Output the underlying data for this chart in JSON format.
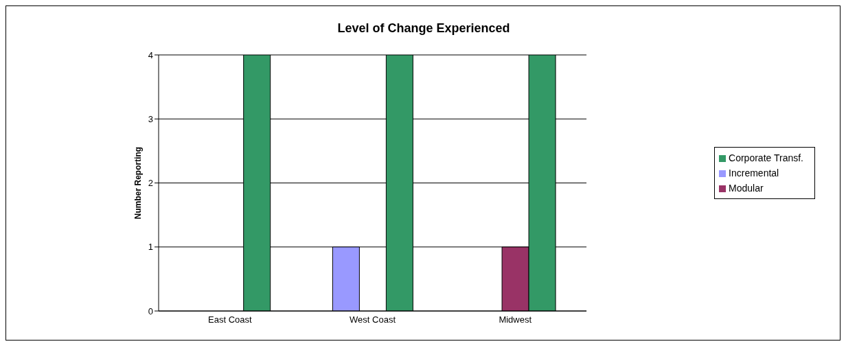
{
  "chart_data": {
    "type": "bar",
    "title": "Level of Change Experienced",
    "ylabel": "Number Reporting",
    "categories": [
      "East Coast",
      "West Coast",
      "Midwest"
    ],
    "series": [
      {
        "name": "Incremental",
        "color": "#9999ff",
        "values": [
          0,
          1,
          0
        ]
      },
      {
        "name": "Modular",
        "color": "#993366",
        "values": [
          0,
          0,
          1
        ]
      },
      {
        "name": "Corporate Transf.",
        "color": "#339966",
        "values": [
          4,
          4,
          4
        ]
      }
    ],
    "ylim": [
      0,
      4
    ],
    "yticks": [
      0,
      1,
      2,
      3,
      4
    ],
    "grid": "y",
    "legend": "right"
  }
}
